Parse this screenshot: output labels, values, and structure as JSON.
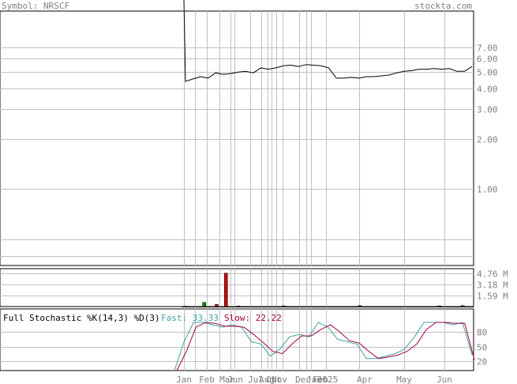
{
  "header": {
    "symbol_label": "Symbol: NRSCF",
    "site_label": "stockta.com"
  },
  "colors": {
    "background": "#ffffff",
    "frame": "#000000",
    "grid": "#c0c0c0",
    "text": "#808080",
    "price_line": "#000000",
    "volume_up": "#008000",
    "volume_down": "#cc0000",
    "fast_line": "#40a0a0",
    "slow_line": "#a00040"
  },
  "chart_data": [
    {
      "type": "line",
      "name": "price",
      "scale": "log",
      "ylim": [
        0.35,
        8.0
      ],
      "ytick_labels": [
        "7.00",
        "6.00",
        "5.00",
        "4.00",
        "3.00",
        "2.00",
        "1.00"
      ],
      "ytick_values": [
        7,
        6,
        5,
        4,
        3,
        2,
        1
      ],
      "x_labels": [
        "Jan",
        "Feb",
        "Mar",
        "Jun",
        "Jul",
        "Aug",
        "Oct",
        "Nov",
        "Dec",
        "Jan",
        "Feb",
        "2025",
        "Apr",
        "May",
        "Jun"
      ],
      "series": [
        {
          "values": [
            8.0,
            4.4,
            4.55,
            4.7,
            4.6,
            4.95,
            4.85,
            4.9,
            5.0,
            5.05,
            4.95,
            5.3,
            5.2,
            5.3,
            5.45,
            5.5,
            5.4,
            5.55,
            5.5,
            5.45,
            5.3,
            4.6,
            4.6,
            4.65,
            4.6,
            4.7,
            4.7,
            4.75,
            4.8,
            4.95,
            5.05,
            5.1,
            5.2,
            5.2,
            5.25,
            5.2,
            5.25,
            5.05,
            5.05,
            5.4
          ]
        }
      ]
    },
    {
      "type": "bar",
      "name": "volume",
      "ytick_labels": [
        "4.76 M",
        "3.18 M",
        "1.59 M"
      ],
      "ytick_values": [
        4.76,
        3.18,
        1.59
      ],
      "ylim": [
        0,
        5.4
      ],
      "bars": [
        {
          "x": 0.0,
          "value": 0.05,
          "dir": "up"
        },
        {
          "x": 1.2,
          "value": 0.6,
          "dir": "up"
        },
        {
          "x": 2.0,
          "value": 0.3,
          "dir": "down"
        },
        {
          "x": 2.6,
          "value": 4.76,
          "dir": "down"
        },
        {
          "x": 3.4,
          "value": 0.08,
          "dir": "up"
        },
        {
          "x": 6.3,
          "value": 0.1,
          "dir": "down"
        },
        {
          "x": 11.2,
          "value": 0.15,
          "dir": "up"
        },
        {
          "x": 16.3,
          "value": 0.1,
          "dir": "up"
        },
        {
          "x": 17.8,
          "value": 0.15,
          "dir": "up"
        }
      ]
    },
    {
      "type": "line",
      "name": "stochastic",
      "title": "Full Stochastic %K(14,3) %D(3)",
      "legend": [
        {
          "label": "Fast: 33.33",
          "color": "#40a0a0"
        },
        {
          "label": "Slow: 22.22",
          "color": "#a00040"
        }
      ],
      "ylim": [
        0,
        100
      ],
      "ytick_labels": [
        "80",
        "50",
        "20"
      ],
      "ytick_values": [
        80,
        50,
        20
      ],
      "series": [
        {
          "name": "fast",
          "values": [
            0,
            60,
            100,
            100,
            95,
            90,
            95,
            90,
            60,
            55,
            30,
            45,
            70,
            75,
            70,
            100,
            90,
            65,
            60,
            55,
            25,
            25,
            30,
            35,
            45,
            70,
            100,
            100,
            100,
            95,
            100,
            33
          ]
        },
        {
          "name": "slow",
          "values": [
            0,
            40,
            90,
            100,
            98,
            92,
            92,
            90,
            75,
            58,
            40,
            35,
            55,
            72,
            72,
            85,
            95,
            80,
            62,
            57,
            40,
            25,
            28,
            32,
            40,
            55,
            85,
            100,
            100,
            98,
            98,
            22
          ]
        }
      ]
    }
  ]
}
